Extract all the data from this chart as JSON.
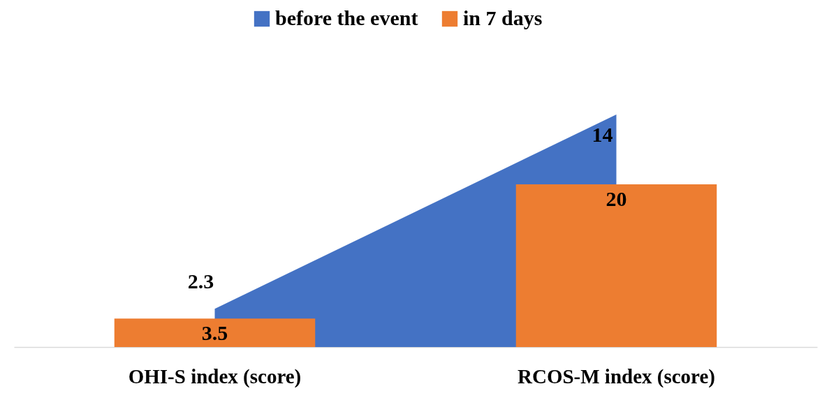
{
  "chart_data": {
    "type": "bar",
    "categories": [
      "OHI-S index (score)",
      "RCOS-M index (score)"
    ],
    "series": [
      {
        "name": "before the event",
        "type": "area",
        "axis": "y2",
        "color": "#4472c4",
        "values": [
          2.3,
          14
        ]
      },
      {
        "name": "in 7 days",
        "color": "#ed7d31",
        "values": [
          3.5,
          20
        ]
      }
    ],
    "tick_labels": "x",
    "data_labels": true,
    "legend": "top"
  }
}
